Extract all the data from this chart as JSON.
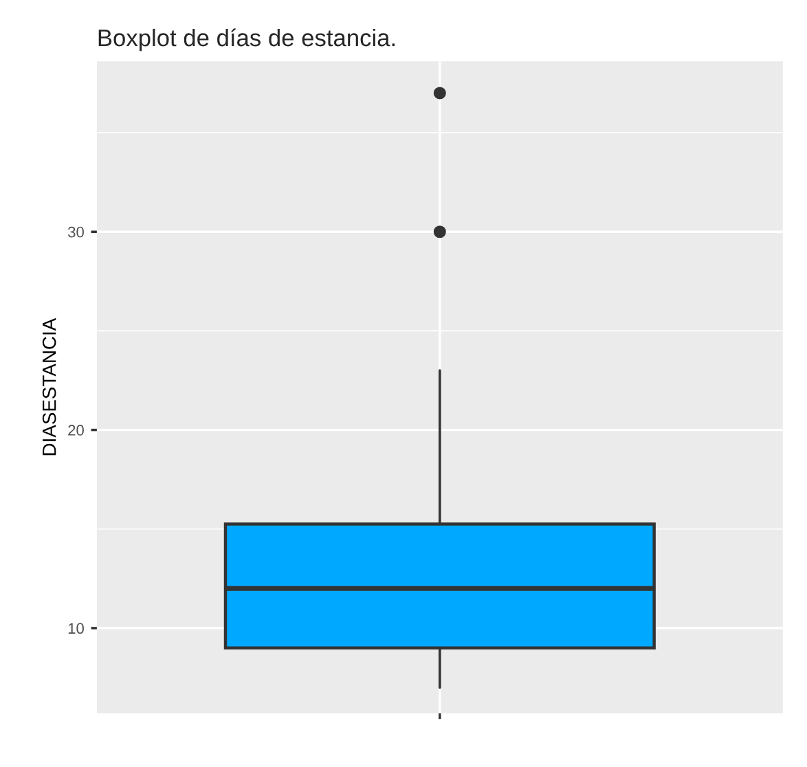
{
  "chart_data": {
    "type": "box",
    "title": "Boxplot de días de estancia.",
    "ylabel": "DIASESTANCIA",
    "categories": [
      null
    ],
    "series": [
      {
        "color": "#00a9ff",
        "boxes": [
          {
            "low": 7,
            "q1": 9,
            "median": 12,
            "q3": 15.25,
            "high": 23,
            "outliers": [
              30,
              37
            ]
          }
        ]
      }
    ],
    "ylim": [
      5.7,
      38.6
    ],
    "yticks": [
      10,
      20,
      30
    ],
    "grid": true
  }
}
